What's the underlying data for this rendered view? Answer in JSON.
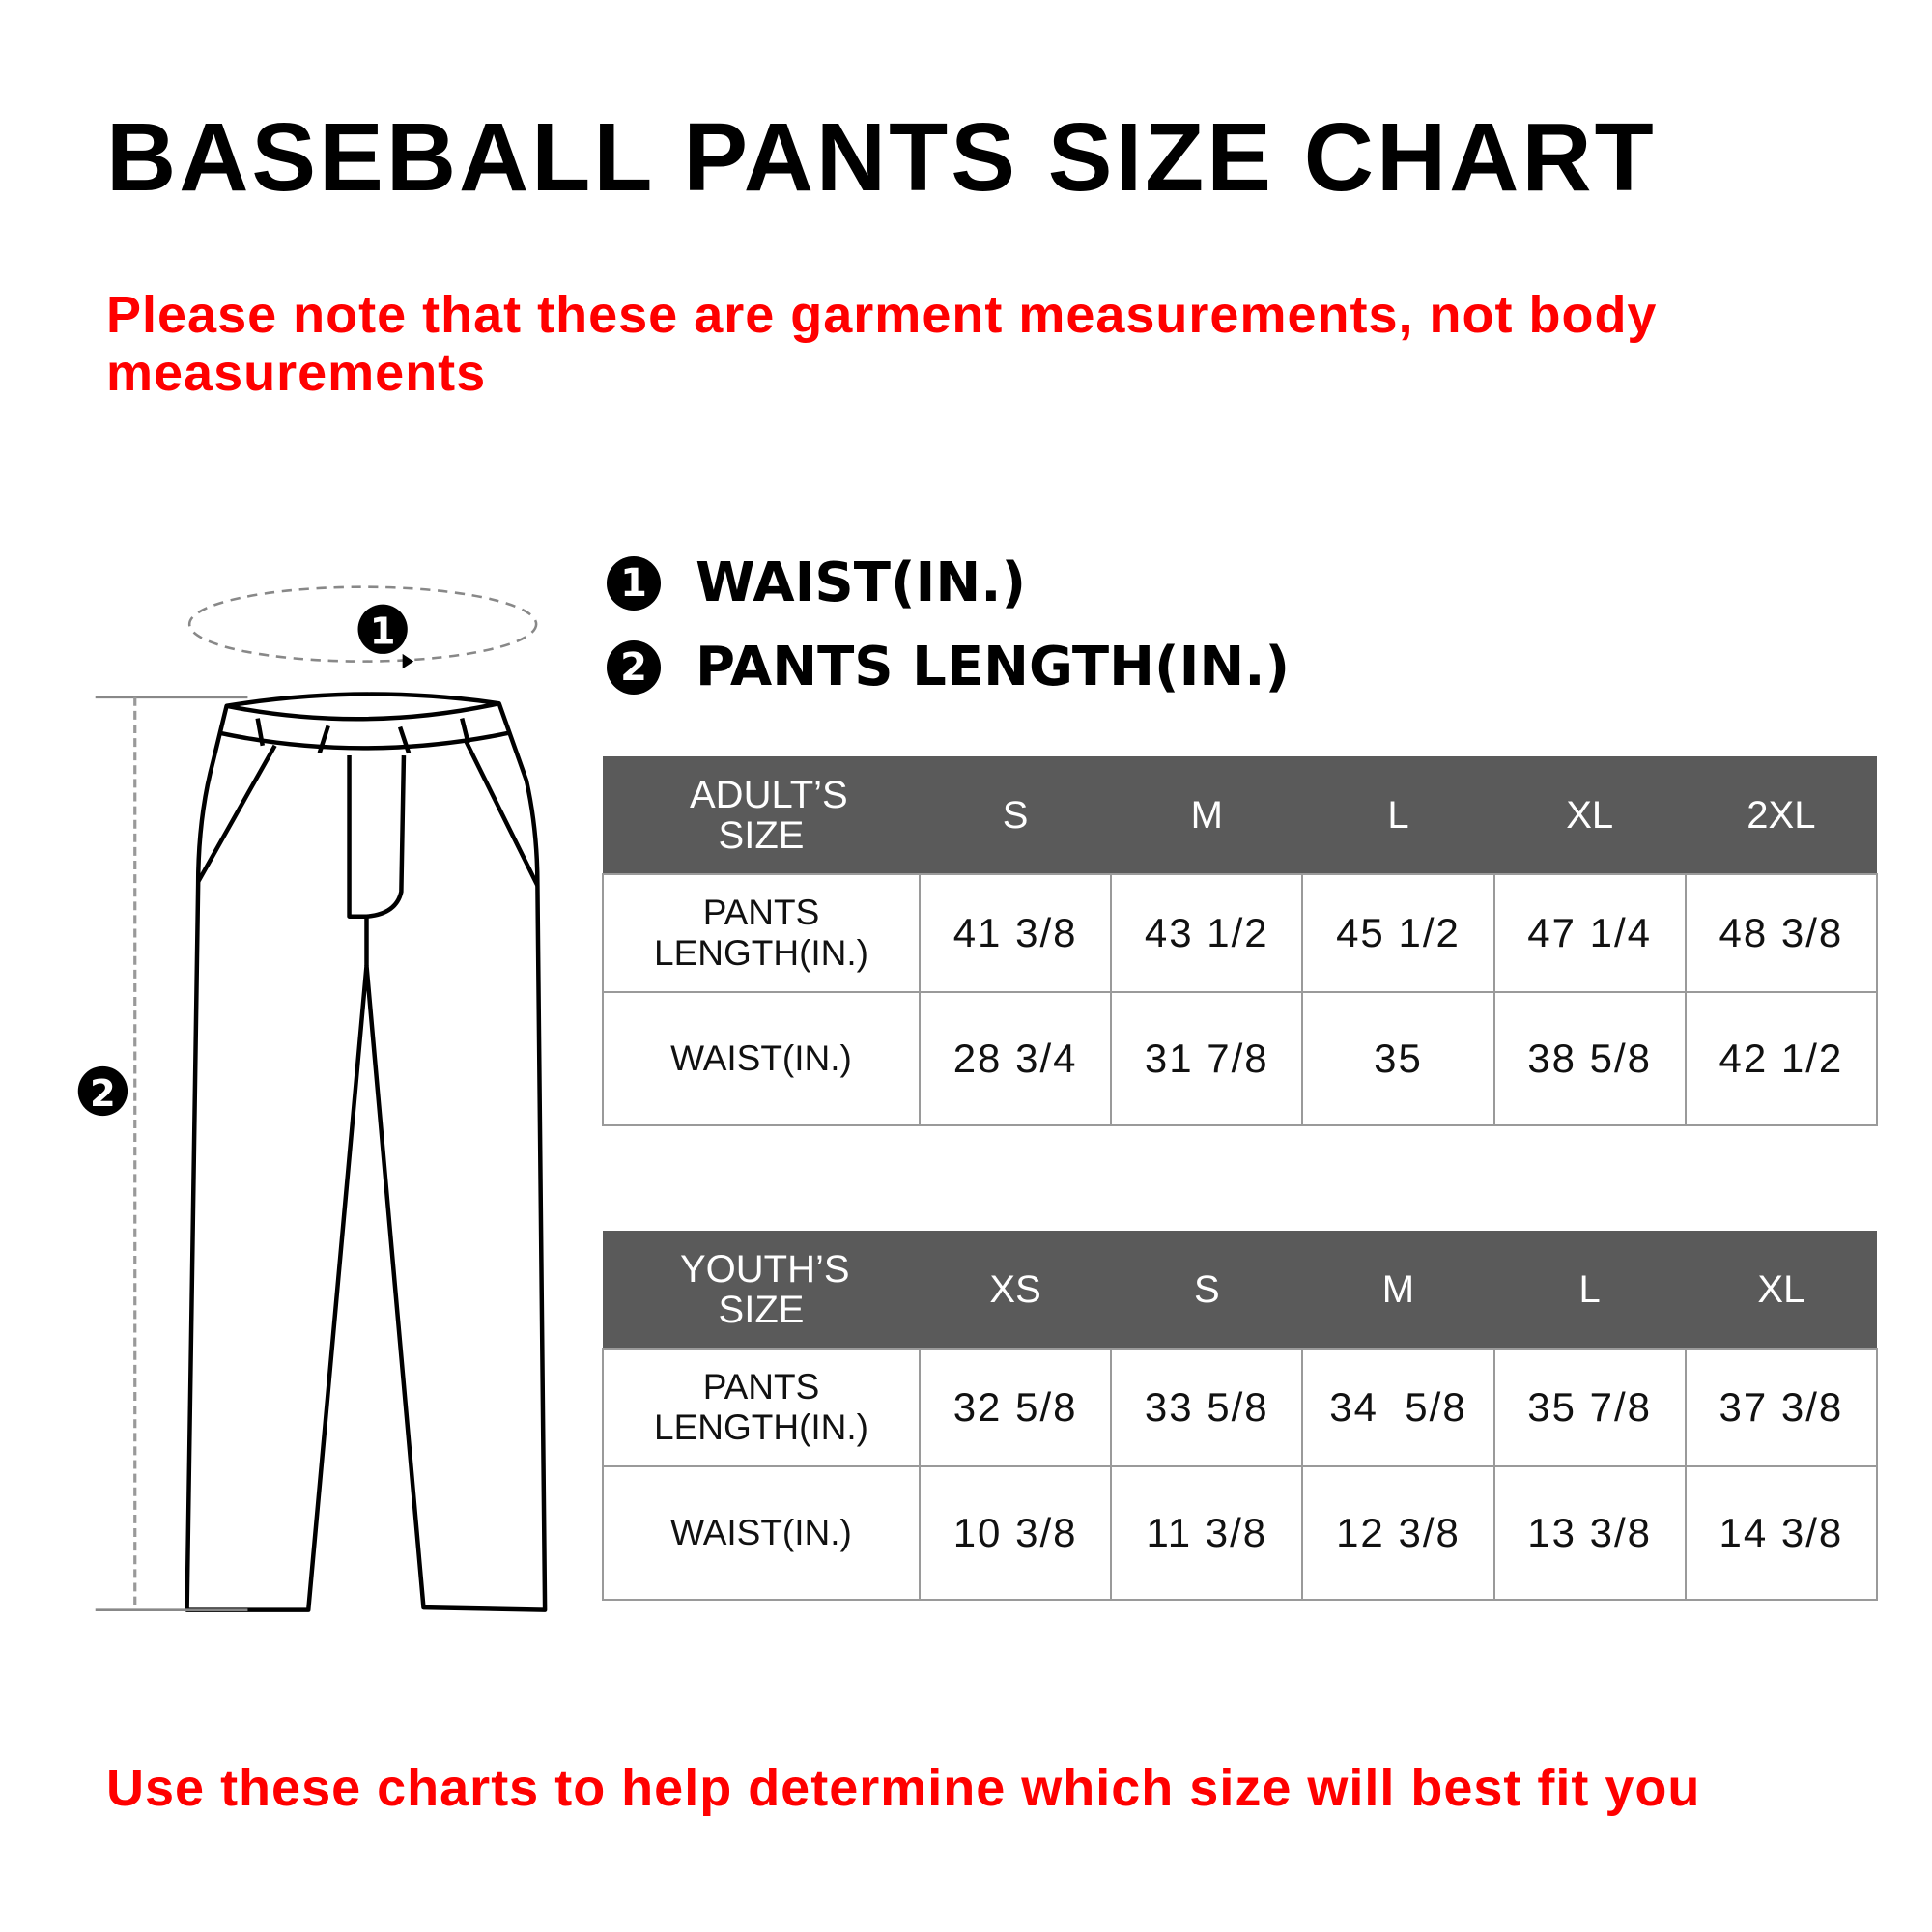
{
  "title": "BASEBALL PANTS SIZE CHART",
  "note": "Please note that these are garment measurements, not body measurements",
  "legend": [
    {
      "number": "1",
      "label": "WAIST(IN.)"
    },
    {
      "number": "2",
      "label": "PANTS LENGTH(IN.)"
    }
  ],
  "diagram": {
    "marker_waist": "1",
    "marker_length": "2"
  },
  "adult_table": {
    "header": [
      "ADULT’S SIZE",
      "S",
      "M",
      "L",
      "XL",
      "2XL"
    ],
    "rows": [
      {
        "label": "PANTS LENGTH(IN.)",
        "values": [
          "41 3/8",
          "43 1/2",
          "45 1/2",
          "47 1/4",
          "48 3/8"
        ]
      },
      {
        "label": "WAIST(IN.)",
        "values": [
          "28 3/4",
          "31 7/8",
          "35",
          "38 5/8",
          "42 1/2"
        ]
      }
    ]
  },
  "youth_table": {
    "header": [
      "YOUTH’S SIZE",
      "XS",
      "S",
      "M",
      "L",
      "XL"
    ],
    "rows": [
      {
        "label": "PANTS LENGTH(IN.)",
        "values": [
          "32 5/8",
          "33 5/8",
          "34  5/8",
          "35 7/8",
          "37 3/8"
        ]
      },
      {
        "label": "WAIST(IN.)",
        "values": [
          "10 3/8",
          "11 3/8",
          "12 3/8",
          "13 3/8",
          "14 3/8"
        ]
      }
    ]
  },
  "footer": "Use these charts to help determine which size will best fit you",
  "colors": {
    "accent_red": "#ff0000",
    "header_gray": "#5a5a5a"
  }
}
